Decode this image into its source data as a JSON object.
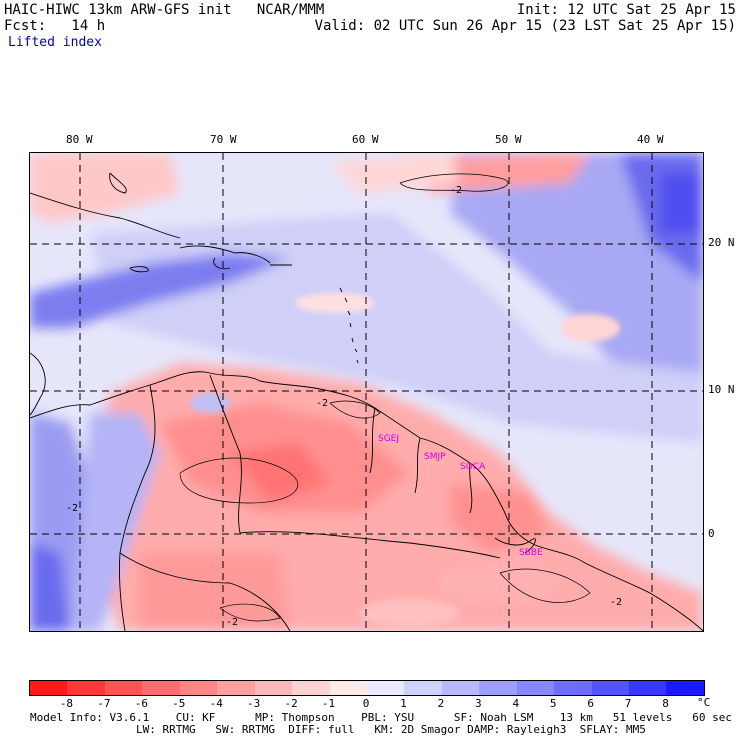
{
  "header": {
    "model_title": "HAIC-HIWC 13km ARW-GFS init   NCAR/MMM",
    "init_time": "Init: 12 UTC Sat 25 Apr 15",
    "fcst_label": "Fcst:   14 h",
    "valid_time": "Valid: 02 UTC Sun 26 Apr 15 (23 LST Sat 25 Apr 15)",
    "field_name": "Lifted index"
  },
  "map": {
    "longitude_labels": [
      "80 W",
      "70 W",
      "60 W",
      "50 W",
      "40 W"
    ],
    "latitude_labels": [
      "20 N",
      "10 N",
      "0"
    ],
    "stations": [
      "SGEJ",
      "SMJP",
      "SOCA",
      "SBBE"
    ],
    "contour_labels": [
      "-2",
      "-2",
      "-2",
      "-2",
      "-2"
    ],
    "colors": {
      "negative_strong": "#ff0000",
      "neutral": "#ffffff",
      "positive_strong": "#0000ff",
      "coastline": "#000000",
      "station": "#e000e0"
    }
  },
  "legend": {
    "unit": "°C",
    "tick_labels": [
      "-8",
      "-7",
      "-6",
      "-5",
      "-4",
      "-3",
      "-2",
      "-1",
      "0",
      "1",
      "2",
      "3",
      "4",
      "5",
      "6",
      "7",
      "8"
    ],
    "colors": [
      "#ff1a1a",
      "#ff3838",
      "#ff5252",
      "#ff6d6d",
      "#ff8686",
      "#ff9e9e",
      "#ffb8b8",
      "#ffd2d2",
      "#ffeaea",
      "#eaeaff",
      "#d2d2ff",
      "#b8b8ff",
      "#9e9eff",
      "#8686ff",
      "#6d6dff",
      "#5252ff",
      "#3838ff",
      "#1a1aff"
    ]
  },
  "footer": {
    "line1": "Model Info: V3.6.1    CU: KF      MP: Thompson    PBL: YSU      SF: Noah LSM    13 km   51 levels   60 sec",
    "line2": "                LW: RRTMG   SW: RRTMG  DIFF: full   KM: 2D Smagor DAMP: Rayleigh3  SFLAY: MM5"
  }
}
